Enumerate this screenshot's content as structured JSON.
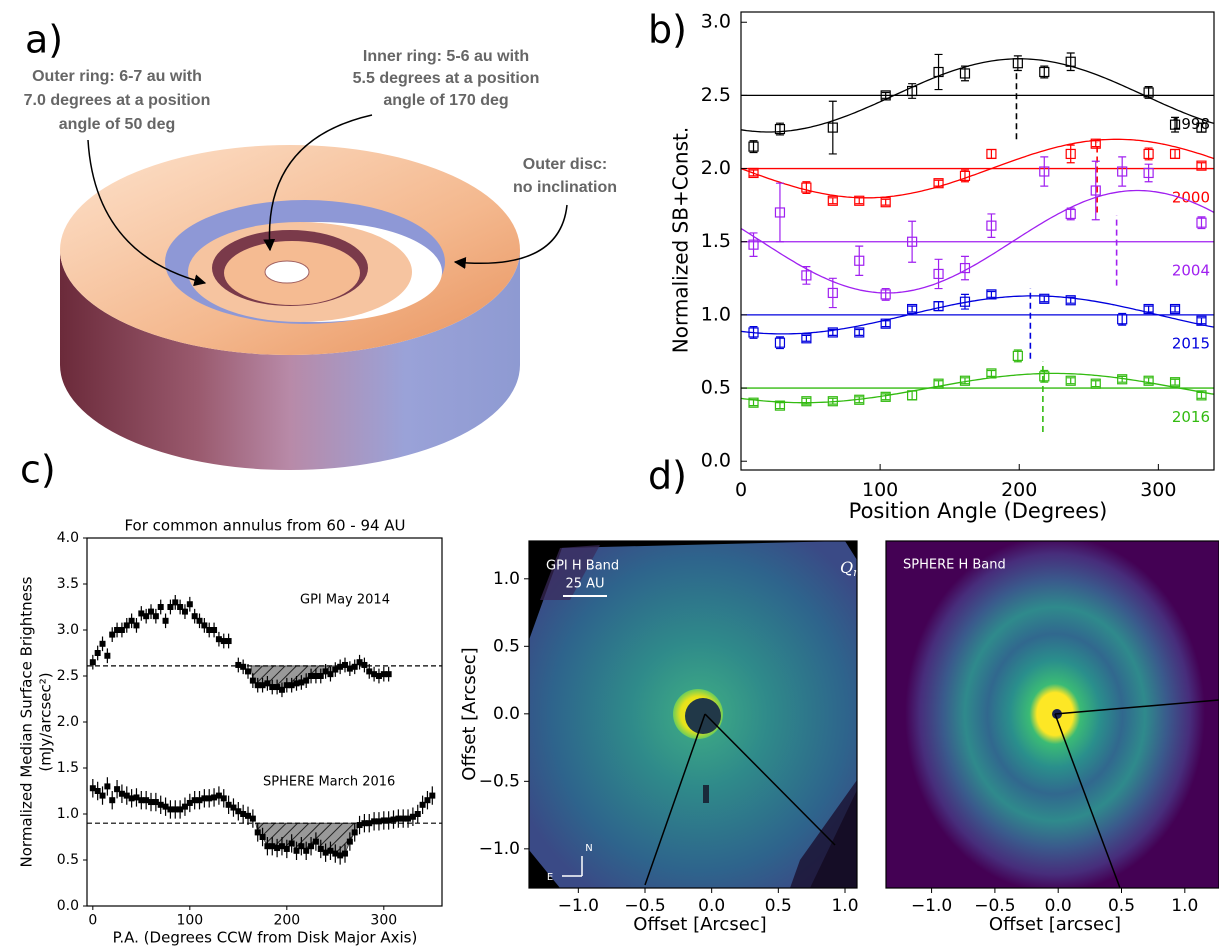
{
  "diagram": {
    "label": "a)",
    "annotations": [
      {
        "lines": [
          "Outer ring: 6-7 au with",
          "7.0 degrees at a position",
          "angle of 50 deg"
        ]
      },
      {
        "lines": [
          "Inner ring: 5-6 au with",
          "5.5 degrees at a position",
          "angle of 170 deg"
        ]
      },
      {
        "lines": [
          "Outer disc:",
          "no inclination"
        ]
      }
    ]
  },
  "chart_data": [
    {
      "type": "scatter",
      "label": "b)",
      "xlabel": "Position Angle (Degrees)",
      "ylabel": "Normalized SB+Const.",
      "xlim": [
        0,
        340
      ],
      "ylim": [
        -0.06,
        3.07
      ],
      "xticks": [
        0,
        100,
        200,
        300
      ],
      "yticks": [
        {
          "value": 0,
          "label": "0.0"
        },
        {
          "value": 0.5,
          "label": "0.5"
        },
        {
          "value": 1,
          "label": "1.0"
        },
        {
          "value": 1.5,
          "label": "1.5"
        },
        {
          "value": 2,
          "label": "2.0"
        },
        {
          "value": 2.5,
          "label": "2.5"
        },
        {
          "value": 3,
          "label": "3.0"
        }
      ],
      "series": [
        {
          "name": "1998",
          "color": "#000000",
          "baseline": 2.5,
          "fit_amplitude": 0.25,
          "fit_peak": 200,
          "marker_x": 198,
          "x": [
            9,
            28,
            66,
            104,
            123,
            142,
            161,
            199,
            218,
            237,
            293,
            312,
            331
          ],
          "values": [
            2.15,
            2.27,
            2.28,
            2.5,
            2.53,
            2.66,
            2.65,
            2.72,
            2.66,
            2.73,
            2.52,
            2.3,
            2.28
          ],
          "errors": [
            0.04,
            0.04,
            0.18,
            0.02,
            0.05,
            0.12,
            0.05,
            0.05,
            0.04,
            0.06,
            0.04,
            0.05,
            0.03
          ]
        },
        {
          "name": "2000",
          "color": "#ff0000",
          "baseline": 2.0,
          "fit_amplitude": 0.2,
          "fit_peak": 270,
          "marker_x": 256,
          "x": [
            9,
            47,
            66,
            85,
            104,
            142,
            161,
            180,
            237,
            255,
            293,
            312,
            331
          ],
          "values": [
            1.97,
            1.87,
            1.78,
            1.78,
            1.77,
            1.9,
            1.95,
            2.1,
            2.1,
            2.17,
            2.1,
            2.1,
            2.02
          ],
          "errors": [
            0.02,
            0.04,
            0.02,
            0.02,
            0.02,
            0.02,
            0.04,
            0.03,
            0.06,
            0.02,
            0.04,
            0.03,
            0.02
          ]
        },
        {
          "name": "2004",
          "color": "#a020f0",
          "baseline": 1.5,
          "fit_amplitude": 0.35,
          "fit_peak": 285,
          "marker_x": 270,
          "x": [
            9,
            28,
            47,
            66,
            85,
            104,
            123,
            142,
            161,
            180,
            218,
            237,
            255,
            274,
            293,
            331
          ],
          "values": [
            1.48,
            1.7,
            1.27,
            1.15,
            1.37,
            1.14,
            1.5,
            1.28,
            1.32,
            1.61,
            1.98,
            1.69,
            1.85,
            1.98,
            1.97,
            1.63
          ],
          "errors": [
            0.08,
            0.2,
            0.06,
            0.1,
            0.1,
            0.04,
            0.14,
            0.1,
            0.08,
            0.08,
            0.1,
            0.04,
            0.2,
            0.1,
            0.06,
            0.04
          ]
        },
        {
          "name": "2015",
          "color": "#0000dd",
          "baseline": 1.0,
          "fit_amplitude": 0.13,
          "fit_peak": 210,
          "marker_x": 208,
          "x": [
            9,
            28,
            47,
            66,
            85,
            104,
            123,
            142,
            161,
            180,
            218,
            237,
            274,
            293,
            312,
            331
          ],
          "values": [
            0.88,
            0.81,
            0.84,
            0.88,
            0.88,
            0.94,
            1.04,
            1.06,
            1.09,
            1.14,
            1.11,
            1.1,
            0.97,
            1.04,
            1.04,
            0.96
          ],
          "errors": [
            0.04,
            0.04,
            0.02,
            0.02,
            0.02,
            0.02,
            0.02,
            0.03,
            0.05,
            0.02,
            0.02,
            0.02,
            0.04,
            0.02,
            0.02,
            0.02
          ]
        },
        {
          "name": "2016",
          "color": "#33bb11",
          "baseline": 0.5,
          "fit_amplitude": 0.1,
          "fit_peak": 225,
          "marker_x": 217,
          "x": [
            9,
            28,
            47,
            66,
            85,
            104,
            123,
            142,
            161,
            180,
            199,
            218,
            237,
            255,
            274,
            293,
            312,
            331
          ],
          "values": [
            0.4,
            0.38,
            0.41,
            0.41,
            0.42,
            0.44,
            0.45,
            0.53,
            0.55,
            0.6,
            0.72,
            0.58,
            0.55,
            0.53,
            0.56,
            0.55,
            0.54,
            0.45
          ],
          "errors": [
            0.02,
            0.02,
            0.02,
            0.02,
            0.02,
            0.02,
            0.03,
            0.02,
            0.02,
            0.02,
            0.04,
            0.04,
            0.02,
            0.02,
            0.02,
            0.02,
            0.02,
            0.02
          ]
        }
      ]
    },
    {
      "type": "errorbar",
      "label": "c)",
      "title": "For common annulus from 60 - 94 AU",
      "xlabel": "P.A. (Degrees CCW from Disk Major Axis)",
      "ylabel": [
        "Normalized Median Surface Brightness",
        "(mJy/arcsec²)"
      ],
      "xlim": [
        -6,
        360
      ],
      "ylim": [
        0,
        4
      ],
      "xticks": [
        0,
        100,
        200,
        300
      ],
      "yticks": [
        {
          "value": 0,
          "label": "0.0"
        },
        {
          "value": 0.5,
          "label": "0.5"
        },
        {
          "value": 1,
          "label": "1.0"
        },
        {
          "value": 1.5,
          "label": "1.5"
        },
        {
          "value": 2,
          "label": "2.0"
        },
        {
          "value": 2.5,
          "label": "2.5"
        },
        {
          "value": 3,
          "label": "3.0"
        },
        {
          "value": 3.5,
          "label": "3.5"
        },
        {
          "value": 4,
          "label": "4.0"
        }
      ],
      "series": [
        {
          "name": "GPI May 2014",
          "color": "#000000",
          "reference": 2.61,
          "shade": [
            163,
            270
          ],
          "error": 0.08,
          "x_error": 2.5,
          "x": [
            0,
            5,
            10,
            15,
            20,
            25,
            30,
            35,
            40,
            45,
            50,
            55,
            60,
            65,
            70,
            75,
            80,
            85,
            90,
            95,
            100,
            105,
            110,
            115,
            120,
            125,
            130,
            135,
            140,
            150,
            155,
            160,
            165,
            170,
            175,
            180,
            185,
            190,
            195,
            200,
            205,
            210,
            215,
            220,
            225,
            230,
            235,
            240,
            245,
            250,
            255,
            260,
            265,
            270,
            275,
            280,
            285,
            290,
            295,
            300,
            305
          ],
          "values": [
            2.65,
            2.75,
            2.85,
            2.72,
            2.95,
            3.0,
            3.0,
            3.05,
            3.1,
            3.05,
            3.18,
            3.15,
            3.2,
            3.15,
            3.25,
            3.1,
            3.25,
            3.3,
            3.25,
            3.2,
            3.28,
            3.15,
            3.1,
            3.05,
            3.0,
            3.0,
            2.9,
            2.88,
            2.88,
            2.62,
            2.6,
            2.55,
            2.45,
            2.4,
            2.4,
            2.42,
            2.38,
            2.38,
            2.35,
            2.4,
            2.4,
            2.42,
            2.43,
            2.45,
            2.5,
            2.5,
            2.5,
            2.55,
            2.52,
            2.57,
            2.6,
            2.62,
            2.58,
            2.6,
            2.65,
            2.62,
            2.55,
            2.52,
            2.5,
            2.52,
            2.52
          ]
        },
        {
          "name": "SPHERE March 2016",
          "color": "#000000",
          "reference": 0.9,
          "shade": [
            168,
            277
          ],
          "error": 0.1,
          "x_error": 2.5,
          "x": [
            0,
            5,
            10,
            15,
            20,
            25,
            30,
            35,
            40,
            45,
            50,
            55,
            60,
            65,
            70,
            75,
            80,
            85,
            90,
            95,
            100,
            105,
            110,
            115,
            120,
            125,
            130,
            135,
            140,
            145,
            150,
            155,
            160,
            165,
            170,
            175,
            180,
            185,
            190,
            195,
            200,
            205,
            210,
            215,
            220,
            225,
            230,
            235,
            240,
            245,
            250,
            255,
            260,
            265,
            270,
            275,
            280,
            285,
            290,
            295,
            300,
            305,
            310,
            315,
            320,
            325,
            330,
            335,
            340,
            345,
            350
          ],
          "values": [
            1.28,
            1.25,
            1.2,
            1.3,
            1.15,
            1.27,
            1.22,
            1.2,
            1.17,
            1.18,
            1.15,
            1.15,
            1.13,
            1.13,
            1.1,
            1.08,
            1.05,
            1.05,
            1.05,
            1.08,
            1.12,
            1.15,
            1.15,
            1.17,
            1.17,
            1.18,
            1.2,
            1.17,
            1.1,
            1.07,
            1.03,
            1.0,
            0.98,
            0.95,
            0.8,
            0.75,
            0.65,
            0.65,
            0.63,
            0.65,
            0.62,
            0.68,
            0.6,
            0.65,
            0.6,
            0.65,
            0.7,
            0.62,
            0.58,
            0.6,
            0.57,
            0.55,
            0.57,
            0.7,
            0.8,
            0.88,
            0.9,
            0.9,
            0.92,
            0.92,
            0.93,
            0.93,
            0.94,
            0.95,
            0.95,
            0.95,
            0.97,
            1.0,
            1.1,
            1.15,
            1.2
          ]
        }
      ]
    },
    {
      "type": "image",
      "label": "d)",
      "title": "GPI H Band",
      "scale_bar": "25 AU",
      "polarization": {
        "base": "Q",
        "sub": "r"
      },
      "compass": [
        "N",
        "E"
      ],
      "xlabel": "Offset [Arcsec]",
      "ylabel": "Offset [Arcsec]",
      "xlim": [
        -1.37,
        1.09
      ],
      "ylim": [
        -1.29,
        1.28
      ],
      "xticks": [
        {
          "value": -1,
          "label": "−1.0"
        },
        {
          "value": -0.5,
          "label": "−0.5"
        },
        {
          "value": 0,
          "label": "0.0"
        },
        {
          "value": 0.5,
          "label": "0.5"
        },
        {
          "value": 1,
          "label": "1.0"
        }
      ],
      "yticks": [
        {
          "value": -1,
          "label": "−1.0"
        },
        {
          "value": -0.5,
          "label": "−0.5"
        },
        {
          "value": 0,
          "label": "0.0"
        },
        {
          "value": 0.5,
          "label": "0.5"
        },
        {
          "value": 1,
          "label": "1.0"
        }
      ]
    },
    {
      "type": "image",
      "title": "SPHERE H Band",
      "xlabel": "Offset [arcsec]",
      "xlim": [
        -1.36,
        1.27
      ],
      "ylim": [
        -1.37,
        1.37
      ],
      "xticks": [
        {
          "value": -1,
          "label": "−1.0"
        },
        {
          "value": -0.5,
          "label": "−0.5"
        },
        {
          "value": 0,
          "label": "0.0"
        },
        {
          "value": 0.5,
          "label": "0.5"
        },
        {
          "value": 1,
          "label": "1.0"
        }
      ]
    }
  ]
}
